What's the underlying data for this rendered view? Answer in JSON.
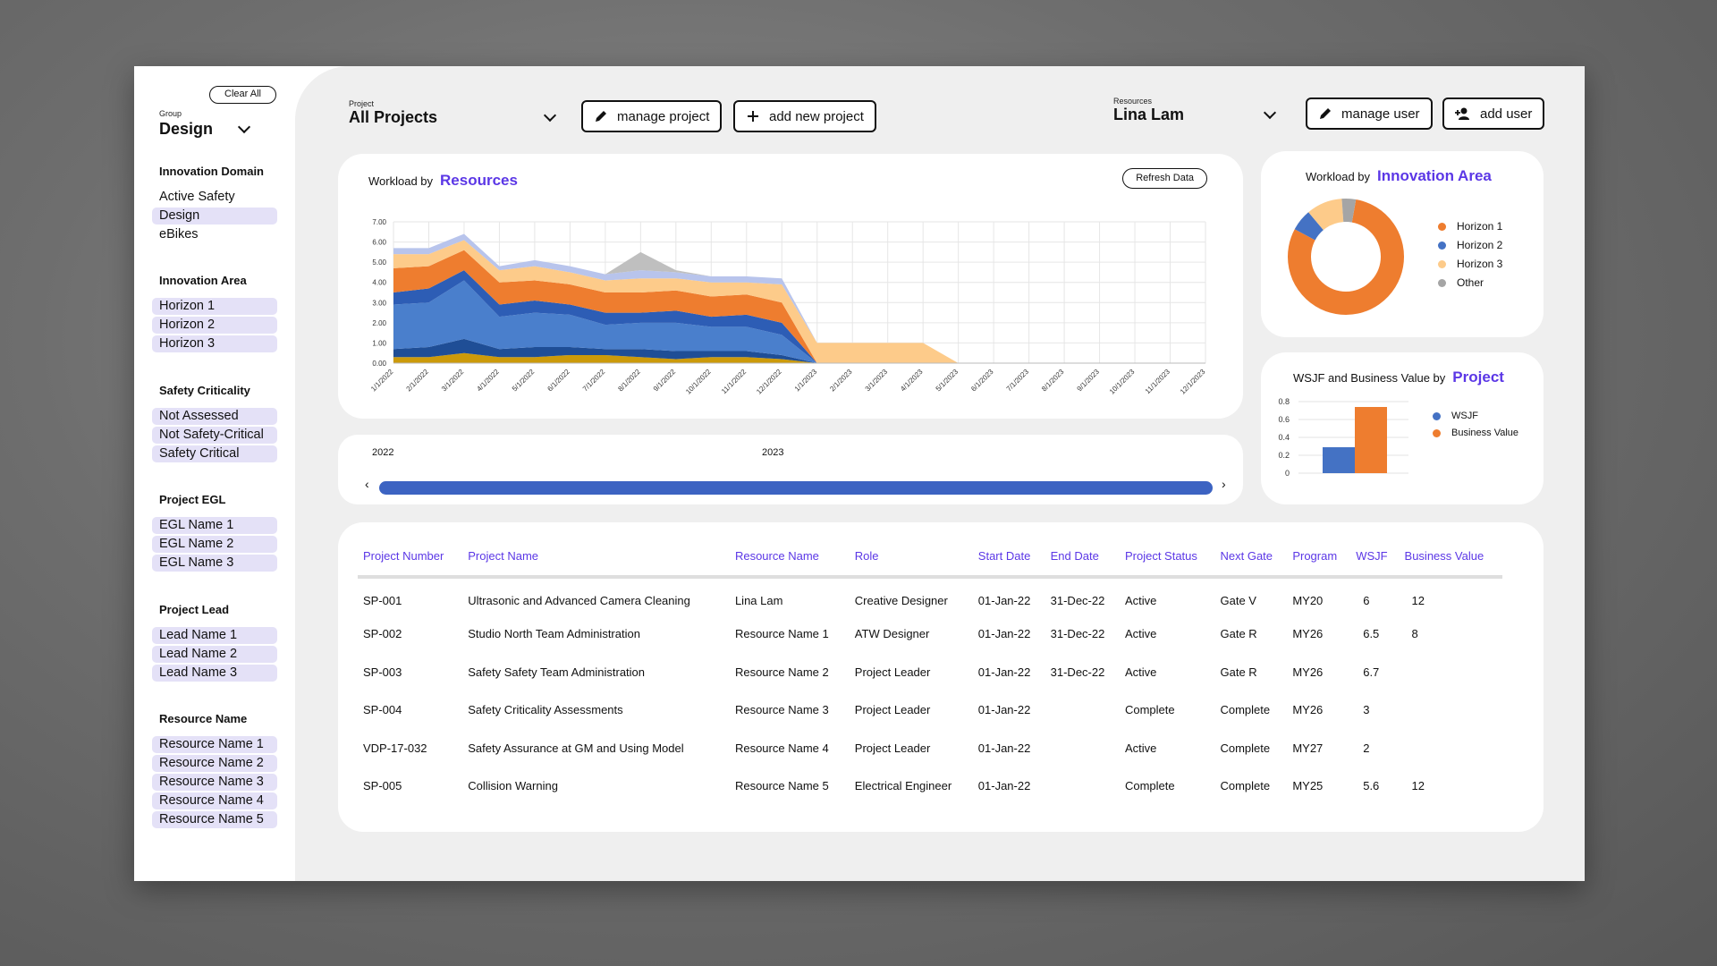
{
  "sidebar": {
    "clear_all": "Clear All",
    "group_label": "Group",
    "group_value": "Design",
    "sections": [
      {
        "title": "Innovation Domain",
        "items": [
          {
            "label": "Active Safety",
            "selected": false
          },
          {
            "label": "Design",
            "selected": true
          },
          {
            "label": "eBikes",
            "selected": false
          }
        ]
      },
      {
        "title": "Innovation Area",
        "items": [
          {
            "label": "Horizon 1",
            "selected": true
          },
          {
            "label": "Horizon 2",
            "selected": true
          },
          {
            "label": "Horizon 3",
            "selected": true
          }
        ]
      },
      {
        "title": "Safety Criticality",
        "items": [
          {
            "label": "Not Assessed",
            "selected": true
          },
          {
            "label": "Not Safety-Critical",
            "selected": true
          },
          {
            "label": "Safety Critical",
            "selected": true
          }
        ]
      },
      {
        "title": "Project EGL",
        "items": [
          {
            "label": "EGL Name 1",
            "selected": true
          },
          {
            "label": "EGL Name 2",
            "selected": true
          },
          {
            "label": "EGL Name 3",
            "selected": true
          }
        ]
      },
      {
        "title": "Project Lead",
        "items": [
          {
            "label": "Lead Name 1",
            "selected": true
          },
          {
            "label": "Lead Name 2",
            "selected": true
          },
          {
            "label": "Lead Name 3",
            "selected": true
          }
        ]
      },
      {
        "title": "Resource Name",
        "items": [
          {
            "label": "Resource Name 1",
            "selected": true
          },
          {
            "label": "Resource Name 2",
            "selected": true
          },
          {
            "label": "Resource Name 3",
            "selected": true
          },
          {
            "label": "Resource Name 4",
            "selected": true
          },
          {
            "label": "Resource Name 5",
            "selected": true
          }
        ]
      }
    ]
  },
  "topbar": {
    "project_label": "Project",
    "project_value": "All Projects",
    "manage_project": "manage project",
    "add_new_project": "add new project",
    "resources_label": "Resources",
    "resources_value": "Lina Lam",
    "manage_user": "manage user",
    "add_user": "add user"
  },
  "workload_resources": {
    "title_prefix": "Workload by",
    "title_accent": "Resources",
    "refresh": "Refresh Data"
  },
  "timeline": {
    "year_labels": [
      "2022",
      "2023"
    ],
    "prev_icon": "chevron-left-icon",
    "next_icon": "chevron-right-icon"
  },
  "workload_innovation": {
    "title_prefix": "Workload by",
    "title_accent": "Innovation Area"
  },
  "wsjf_card": {
    "title_prefix": "WSJF and Business Value by",
    "title_accent": "Project"
  },
  "colors": {
    "accent": "#5b37e6",
    "orange": "#ee7d2f",
    "blue": "#4472c4",
    "light_orange": "#fdcb8a",
    "gray": "#a5a5a5",
    "timeline_bar": "#3c63c2"
  },
  "chart_data": [
    {
      "type": "area",
      "stacked": true,
      "title": "Workload by Resources",
      "categories": [
        "1/1/2022",
        "2/1/2022",
        "3/1/2022",
        "4/1/2022",
        "5/1/2022",
        "6/1/2022",
        "7/1/2022",
        "8/1/2022",
        "9/1/2022",
        "10/1/2022",
        "11/1/2022",
        "12/1/2022",
        "1/1/2023",
        "2/1/2023",
        "3/1/2023",
        "4/1/2023",
        "5/1/2023",
        "6/1/2023",
        "7/1/2023",
        "8/1/2023",
        "9/1/2023",
        "10/1/2023",
        "11/1/2023",
        "12/1/2023"
      ],
      "y_ticks": [
        "0.00",
        "1.00",
        "2.00",
        "3.00",
        "4.00",
        "5.00",
        "6.00",
        "7.00"
      ],
      "ylim": [
        0,
        7
      ],
      "grid": true,
      "series": [
        {
          "color": "#cc9a0a",
          "values": [
            0.3,
            0.3,
            0.5,
            0.3,
            0.3,
            0.4,
            0.4,
            0.3,
            0.2,
            0.3,
            0.3,
            0.2,
            0,
            0,
            0,
            0,
            0,
            0,
            0,
            0,
            0,
            0,
            0,
            0
          ]
        },
        {
          "color": "#1f4e96",
          "values": [
            0.4,
            0.5,
            0.7,
            0.4,
            0.5,
            0.4,
            0.3,
            0.4,
            0.4,
            0.3,
            0.3,
            0.2,
            0,
            0,
            0,
            0,
            0,
            0,
            0,
            0,
            0,
            0,
            0,
            0
          ]
        },
        {
          "color": "#4a7fcc",
          "values": [
            2.2,
            2.2,
            2.9,
            1.6,
            1.7,
            1.6,
            1.2,
            1.3,
            1.4,
            1.2,
            1.2,
            1.0,
            0,
            0,
            0,
            0,
            0,
            0,
            0,
            0,
            0,
            0,
            0,
            0
          ]
        },
        {
          "color": "#2d5db5",
          "values": [
            0.6,
            0.7,
            0.5,
            0.6,
            0.6,
            0.5,
            0.6,
            0.5,
            0.6,
            0.5,
            0.6,
            0.6,
            0,
            0,
            0,
            0,
            0,
            0,
            0,
            0,
            0,
            0,
            0,
            0
          ]
        },
        {
          "color": "#ee7d2f",
          "values": [
            1.2,
            1.1,
            1.0,
            1.1,
            1.0,
            1.0,
            1.0,
            1.0,
            1.0,
            1.0,
            1.0,
            1.0,
            0,
            0,
            0,
            0,
            0,
            0,
            0,
            0,
            0,
            0,
            0,
            0
          ]
        },
        {
          "color": "#fdcb8a",
          "values": [
            0.7,
            0.6,
            0.5,
            0.6,
            0.7,
            0.6,
            0.6,
            0.7,
            0.6,
            0.7,
            0.6,
            0.9,
            1.0,
            1.0,
            1.0,
            1.0,
            0,
            0,
            0,
            0,
            0,
            0,
            0,
            0
          ]
        },
        {
          "color": "#b8c4ec",
          "values": [
            0.3,
            0.3,
            0.3,
            0.2,
            0.3,
            0.3,
            0.3,
            0.4,
            0.3,
            0.3,
            0.3,
            0.3,
            0,
            0,
            0,
            0,
            0,
            0,
            0,
            0,
            0,
            0,
            0,
            0
          ]
        },
        {
          "color": "#bfbfbf",
          "values": [
            0,
            0,
            0,
            0,
            0,
            0,
            0,
            0.9,
            0.1,
            0,
            0,
            0,
            0,
            0,
            0,
            0,
            0,
            0,
            0,
            0,
            0,
            0,
            0,
            0
          ]
        }
      ]
    },
    {
      "type": "pie",
      "donut": true,
      "title": "Workload by Innovation Area",
      "legend_position": "right",
      "slices": [
        {
          "label": "Horizon 1",
          "value": 80,
          "color": "#ee7d2f"
        },
        {
          "label": "Horizon 2",
          "value": 6,
          "color": "#4472c4"
        },
        {
          "label": "Horizon 3",
          "value": 10,
          "color": "#fdcb8a"
        },
        {
          "label": "Other",
          "value": 4,
          "color": "#a5a5a5"
        }
      ]
    },
    {
      "type": "bar",
      "title": "WSJF and Business Value by Project",
      "legend_position": "right",
      "categories": [
        ""
      ],
      "y_ticks": [
        "0",
        "0.2",
        "0.4",
        "0.6",
        "0.8"
      ],
      "ylim": [
        0,
        0.8
      ],
      "series": [
        {
          "name": "WSJF",
          "color": "#4472c4",
          "values": [
            0.29
          ]
        },
        {
          "name": "Business Value",
          "color": "#ee7d2f",
          "values": [
            0.74
          ]
        }
      ]
    }
  ],
  "table": {
    "headers": [
      "Project Number",
      "Project Name",
      "Resource Name",
      "Role",
      "Start Date",
      "End Date",
      "Project Status",
      "Next Gate",
      "Program",
      "WSJF",
      "Business Value"
    ],
    "rows": [
      [
        "SP-001",
        "Ultrasonic and Advanced Camera Cleaning",
        "Lina Lam",
        "Creative Designer",
        "01-Jan-22",
        "31-Dec-22",
        "Active",
        "Gate V",
        "MY20",
        "6",
        "12"
      ],
      [
        "SP-002",
        "Studio North Team Administration",
        "Resource Name 1",
        "ATW Designer",
        "01-Jan-22",
        "31-Dec-22",
        "Active",
        "Gate R",
        "MY26",
        "6.5",
        "8"
      ],
      [
        "SP-003",
        "Safety Safety Team Administration",
        "Resource Name 2",
        "Project Leader",
        "01-Jan-22",
        "31-Dec-22",
        "Active",
        "Gate R",
        "MY26",
        "6.7",
        ""
      ],
      [
        "SP-004",
        "Safety Criticality Assessments",
        "Resource Name 3",
        "Project Leader",
        "01-Jan-22",
        "",
        "Complete",
        "Complete",
        "MY26",
        "3",
        ""
      ],
      [
        "VDP-17-032",
        "Safety Assurance at GM and Using Model",
        "Resource Name 4",
        "Project Leader",
        "01-Jan-22",
        "",
        "Active",
        "Complete",
        "MY27",
        "2",
        ""
      ],
      [
        "SP-005",
        "Collision Warning",
        "Resource Name 5",
        "Electrical Engineer",
        "01-Jan-22",
        "",
        "Complete",
        "Complete",
        "MY25",
        "5.6",
        "12"
      ]
    ]
  }
}
